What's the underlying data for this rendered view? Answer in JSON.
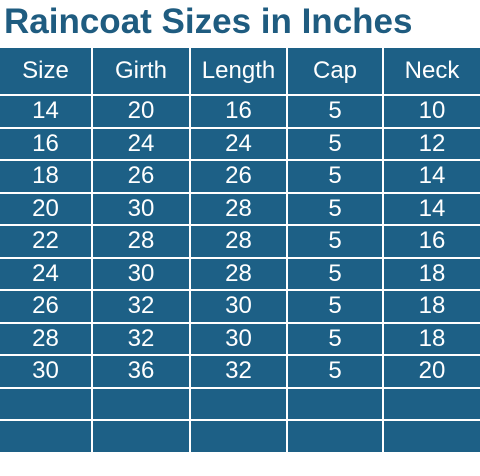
{
  "title": "Raincoat Sizes in Inches",
  "table": {
    "header": [
      "Size",
      "Girth",
      "Length",
      "Cap",
      "Neck"
    ],
    "rows": [
      [
        "14",
        "20",
        "16",
        "5",
        "10"
      ],
      [
        "16",
        "24",
        "24",
        "5",
        "12"
      ],
      [
        "18",
        "26",
        "26",
        "5",
        "14"
      ],
      [
        "20",
        "30",
        "28",
        "5",
        "14"
      ],
      [
        "22",
        "28",
        "28",
        "5",
        "16"
      ],
      [
        "24",
        "30",
        "28",
        "5",
        "18"
      ],
      [
        "26",
        "32",
        "30",
        "5",
        "18"
      ],
      [
        "28",
        "32",
        "30",
        "5",
        "18"
      ],
      [
        "30",
        "36",
        "32",
        "5",
        "20"
      ]
    ]
  }
}
